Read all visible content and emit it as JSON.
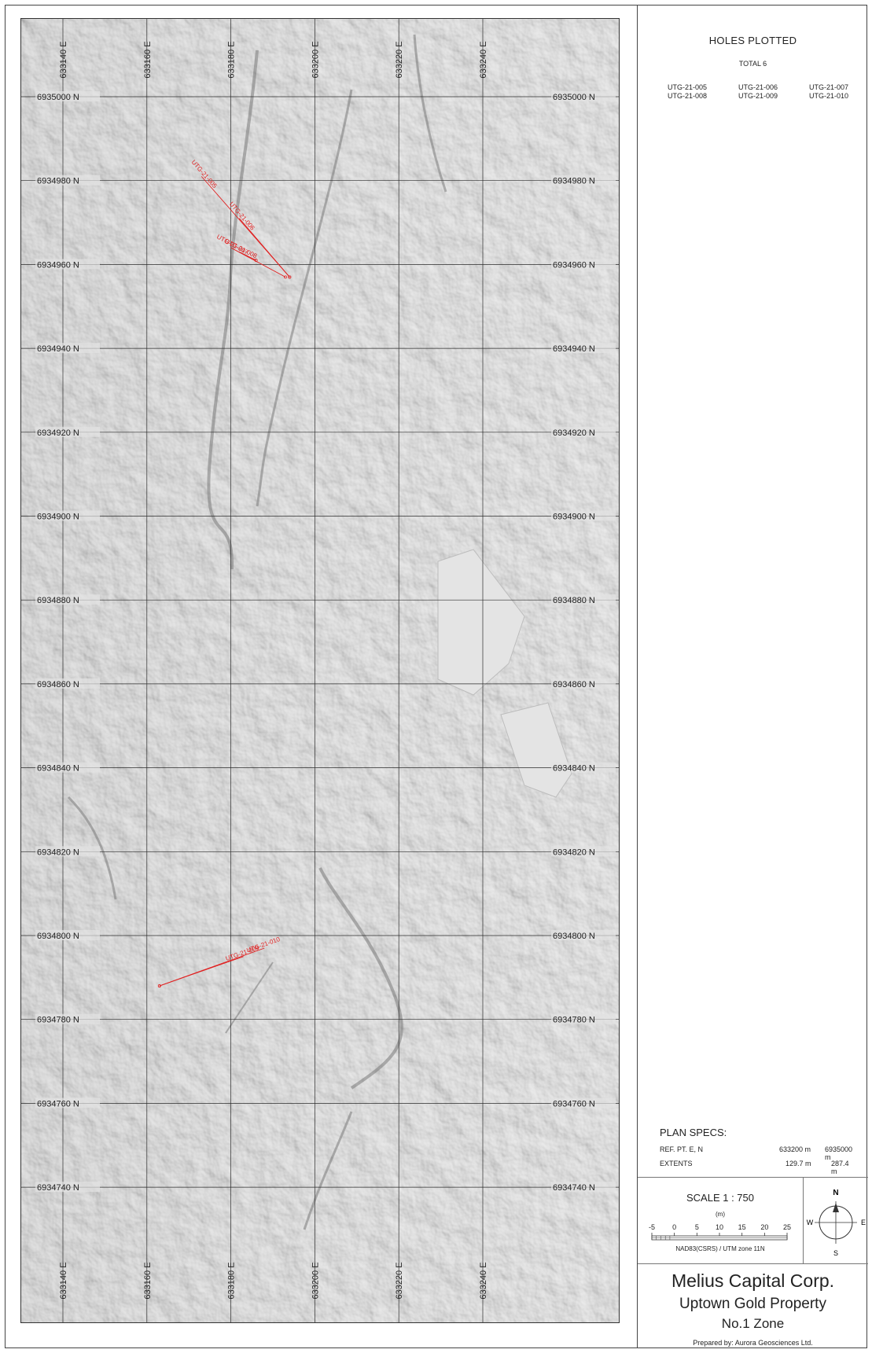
{
  "map": {
    "easting_ticks": [
      "633140 E",
      "633160 E",
      "633180 E",
      "633200 E",
      "633220 E",
      "633240 E"
    ],
    "northing_ticks": [
      "6935000 N",
      "6934980 N",
      "6934960 N",
      "6934940 N",
      "6934920 N",
      "6934900 N",
      "6934880 N",
      "6934860 N",
      "6934840 N",
      "6934820 N",
      "6934800 N",
      "6934780 N",
      "6934760 N",
      "6934740 N"
    ],
    "grid_color": "#2b2b2b",
    "hole_color": "#e02020",
    "holes": [
      {
        "name": "UTG-21-005",
        "collar": [
          633173,
          6934981
        ],
        "toe": [
          633194,
          6934957
        ]
      },
      {
        "name": "UTG-21-006",
        "collar": [
          633182,
          6934971
        ],
        "toe": [
          633194,
          6934957
        ]
      },
      {
        "name": "UTG-21-007",
        "collar": [
          633180,
          6934964
        ],
        "toe": [
          633193,
          6934957
        ]
      },
      {
        "name": "UTG-21-008",
        "collar": [
          633182,
          6934963
        ],
        "toe": [
          633186,
          6934961
        ]
      },
      {
        "name": "UTG-21-009",
        "collar": [
          633183,
          6934795
        ],
        "toe": [
          633163,
          6934788
        ]
      },
      {
        "name": "UTG-21-010",
        "collar": [
          633188,
          6934797
        ],
        "toe": [
          633163,
          6934788
        ]
      }
    ]
  },
  "holes_plotted": {
    "title": "HOLES PLOTTED",
    "total": "TOTAL 6",
    "list": [
      "UTG-21-005",
      "UTG-21-006",
      "UTG-21-007",
      "UTG-21-008",
      "UTG-21-009",
      "UTG-21-010"
    ]
  },
  "plan_specs": {
    "title": "PLAN  SPECS:",
    "ref_label": "REF. PT.  E, N",
    "ref_e": "633200 m",
    "ref_n": "6935000 m",
    "extents_label": "EXTENTS",
    "extents_e": "129.7 m",
    "extents_n": "287.4 m"
  },
  "scale": {
    "title": "SCALE  1 : 750",
    "unit": "(m)",
    "ticks": [
      "-5",
      "0",
      "5",
      "10",
      "15",
      "20",
      "25"
    ],
    "datum": "NAD83(CSRS) / UTM zone 11N"
  },
  "compass": {
    "n": "N",
    "s": "S",
    "e": "E",
    "w": "W"
  },
  "title_block": {
    "company": "Melius Capital Corp.",
    "property": "Uptown Gold Property",
    "zone": "No.1 Zone",
    "prepared": "Prepared by: Aurora Geosciences Ltd."
  }
}
